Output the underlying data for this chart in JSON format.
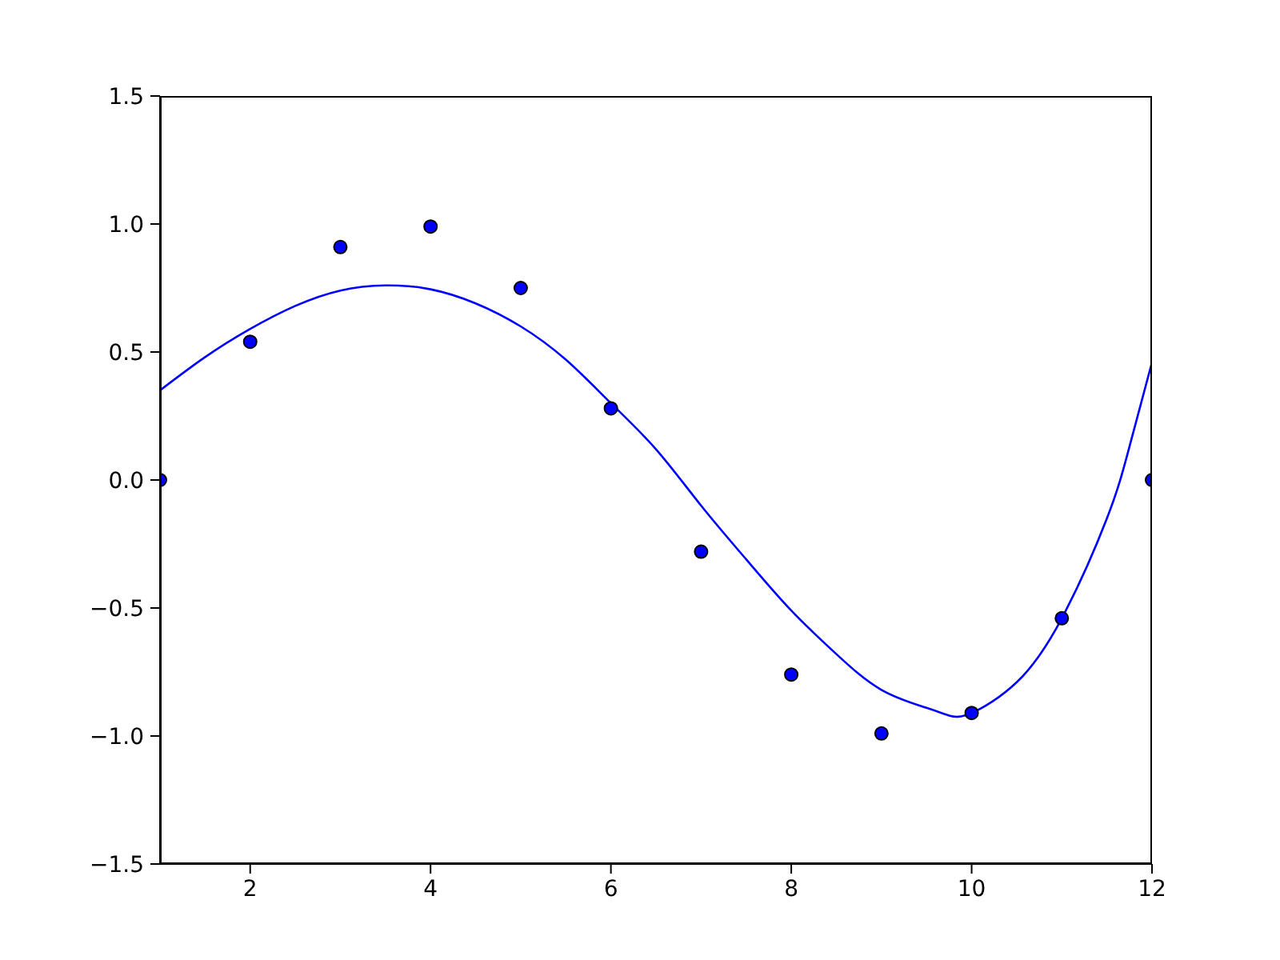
{
  "chart_data": {
    "type": "scatter",
    "xlim": [
      1,
      12
    ],
    "xticks": [
      2,
      4,
      6,
      8,
      10,
      12
    ],
    "ylim": [
      -1.5,
      1.5
    ],
    "yticks": [
      {
        "value": -1.5,
        "label": "−1.5"
      },
      {
        "value": -1,
        "label": "−1.0"
      },
      {
        "value": -0.5,
        "label": "−0.5"
      },
      {
        "value": 0,
        "label": "0.0"
      },
      {
        "value": 0.5,
        "label": "0.5"
      },
      {
        "value": 1,
        "label": "1.0"
      },
      {
        "value": 1.5,
        "label": "1.5"
      }
    ],
    "grid": false,
    "legend": false,
    "series": [
      {
        "type": "line",
        "color": "#0000ff",
        "x": [
          1,
          1.5,
          2,
          2.5,
          3,
          3.5,
          4,
          4.5,
          5,
          5.5,
          6,
          6.5,
          7,
          7.5,
          8,
          8.5,
          9,
          9.5,
          9.75,
          10,
          10.5,
          11,
          11.5,
          11.75,
          12
        ],
        "values": [
          0.35,
          0.48,
          0.59,
          0.68,
          0.74,
          0.76,
          0.745,
          0.69,
          0.6,
          0.47,
          0.3,
          0.12,
          -0.1,
          -0.31,
          -0.51,
          -0.68,
          -0.82,
          -0.89,
          -0.92,
          -0.91,
          -0.79,
          -0.54,
          -0.15,
          0.13,
          0.46
        ]
      },
      {
        "color": "#0000ff",
        "marker": "circle",
        "x": [
          1,
          2,
          3,
          4,
          5,
          6,
          7,
          8,
          9,
          10,
          11,
          12
        ],
        "values": [
          0,
          0.54,
          0.91,
          0.99,
          0.75,
          0.28,
          -0.28,
          -0.76,
          -0.99,
          -0.91,
          -0.54,
          0
        ]
      }
    ]
  }
}
